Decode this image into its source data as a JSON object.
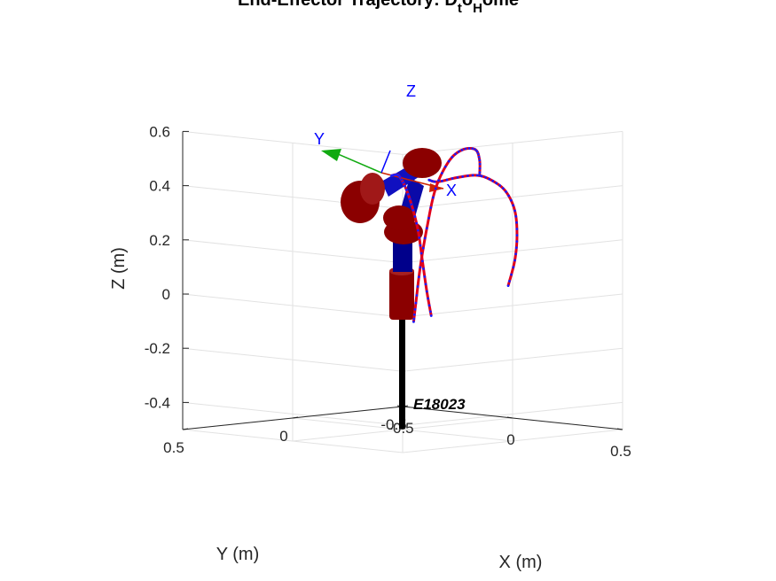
{
  "chart_data": {
    "type": "line3d",
    "title_parts": {
      "main": "End-Effector Trajectory: ",
      "d": "D",
      "t": "t",
      "o": "o",
      "h": "H",
      "tail": "ome"
    },
    "xlabel": "X (m)",
    "ylabel": "Y (m)",
    "zlabel": "Z (m)",
    "xlim": [
      -0.5,
      0.5
    ],
    "ylim": [
      -0.5,
      0.5
    ],
    "zlim": [
      -0.5,
      0.6
    ],
    "xticks": [
      "-0.5",
      "0",
      "0.5"
    ],
    "yticks": [
      "-0.5",
      "0",
      "0.5"
    ],
    "zticks": [
      "-0.4",
      "-0.2",
      "0",
      "0.2",
      "0.4",
      "0.6"
    ],
    "grid": true,
    "robot_label": "E18023",
    "frame_labels": {
      "x": "X",
      "y": "Y",
      "z": "Z"
    },
    "colors": {
      "trajectory": "#e0001b",
      "waypoints": "#1a1aff",
      "link": "#00008b",
      "joint": "#8b0000",
      "frame_x": "#cc2200",
      "frame_y": "#11aa11",
      "frame_z": "#0000ff"
    },
    "series": [
      {
        "points": [
          [
            0.06,
            -0.42,
            0.0
          ],
          [
            0.11,
            -0.4,
            0.1
          ],
          [
            0.16,
            -0.36,
            0.2
          ],
          [
            0.21,
            -0.3,
            0.3
          ],
          [
            0.25,
            -0.22,
            0.38
          ],
          [
            0.28,
            -0.13,
            0.43
          ],
          [
            0.3,
            -0.04,
            0.46
          ],
          [
            0.3,
            0.05,
            0.46
          ],
          [
            0.29,
            0.13,
            0.45
          ],
          [
            0.29,
            0.17,
            0.46
          ]
        ]
      },
      {
        "points": [
          [
            0.3,
            -0.05,
            0.46
          ],
          [
            0.33,
            -0.02,
            0.52
          ],
          [
            0.38,
            0.05,
            0.57
          ],
          [
            0.42,
            0.15,
            0.58
          ],
          [
            0.46,
            0.25,
            0.55
          ],
          [
            0.49,
            0.34,
            0.46
          ],
          [
            0.51,
            0.4,
            0.32
          ],
          [
            0.52,
            0.44,
            0.18
          ],
          [
            0.52,
            0.46,
            0.05
          ],
          [
            0.51,
            0.46,
            -0.02
          ]
        ]
      },
      {
        "points": [
          [
            0.05,
            0.1,
            0.45
          ],
          [
            0.12,
            0.14,
            0.46
          ],
          [
            0.19,
            0.18,
            0.43
          ],
          [
            0.25,
            0.21,
            0.37
          ],
          [
            0.3,
            0.23,
            0.28
          ],
          [
            0.33,
            0.24,
            0.17
          ],
          [
            0.35,
            0.24,
            0.06
          ],
          [
            0.36,
            0.23,
            -0.03
          ]
        ]
      }
    ]
  }
}
